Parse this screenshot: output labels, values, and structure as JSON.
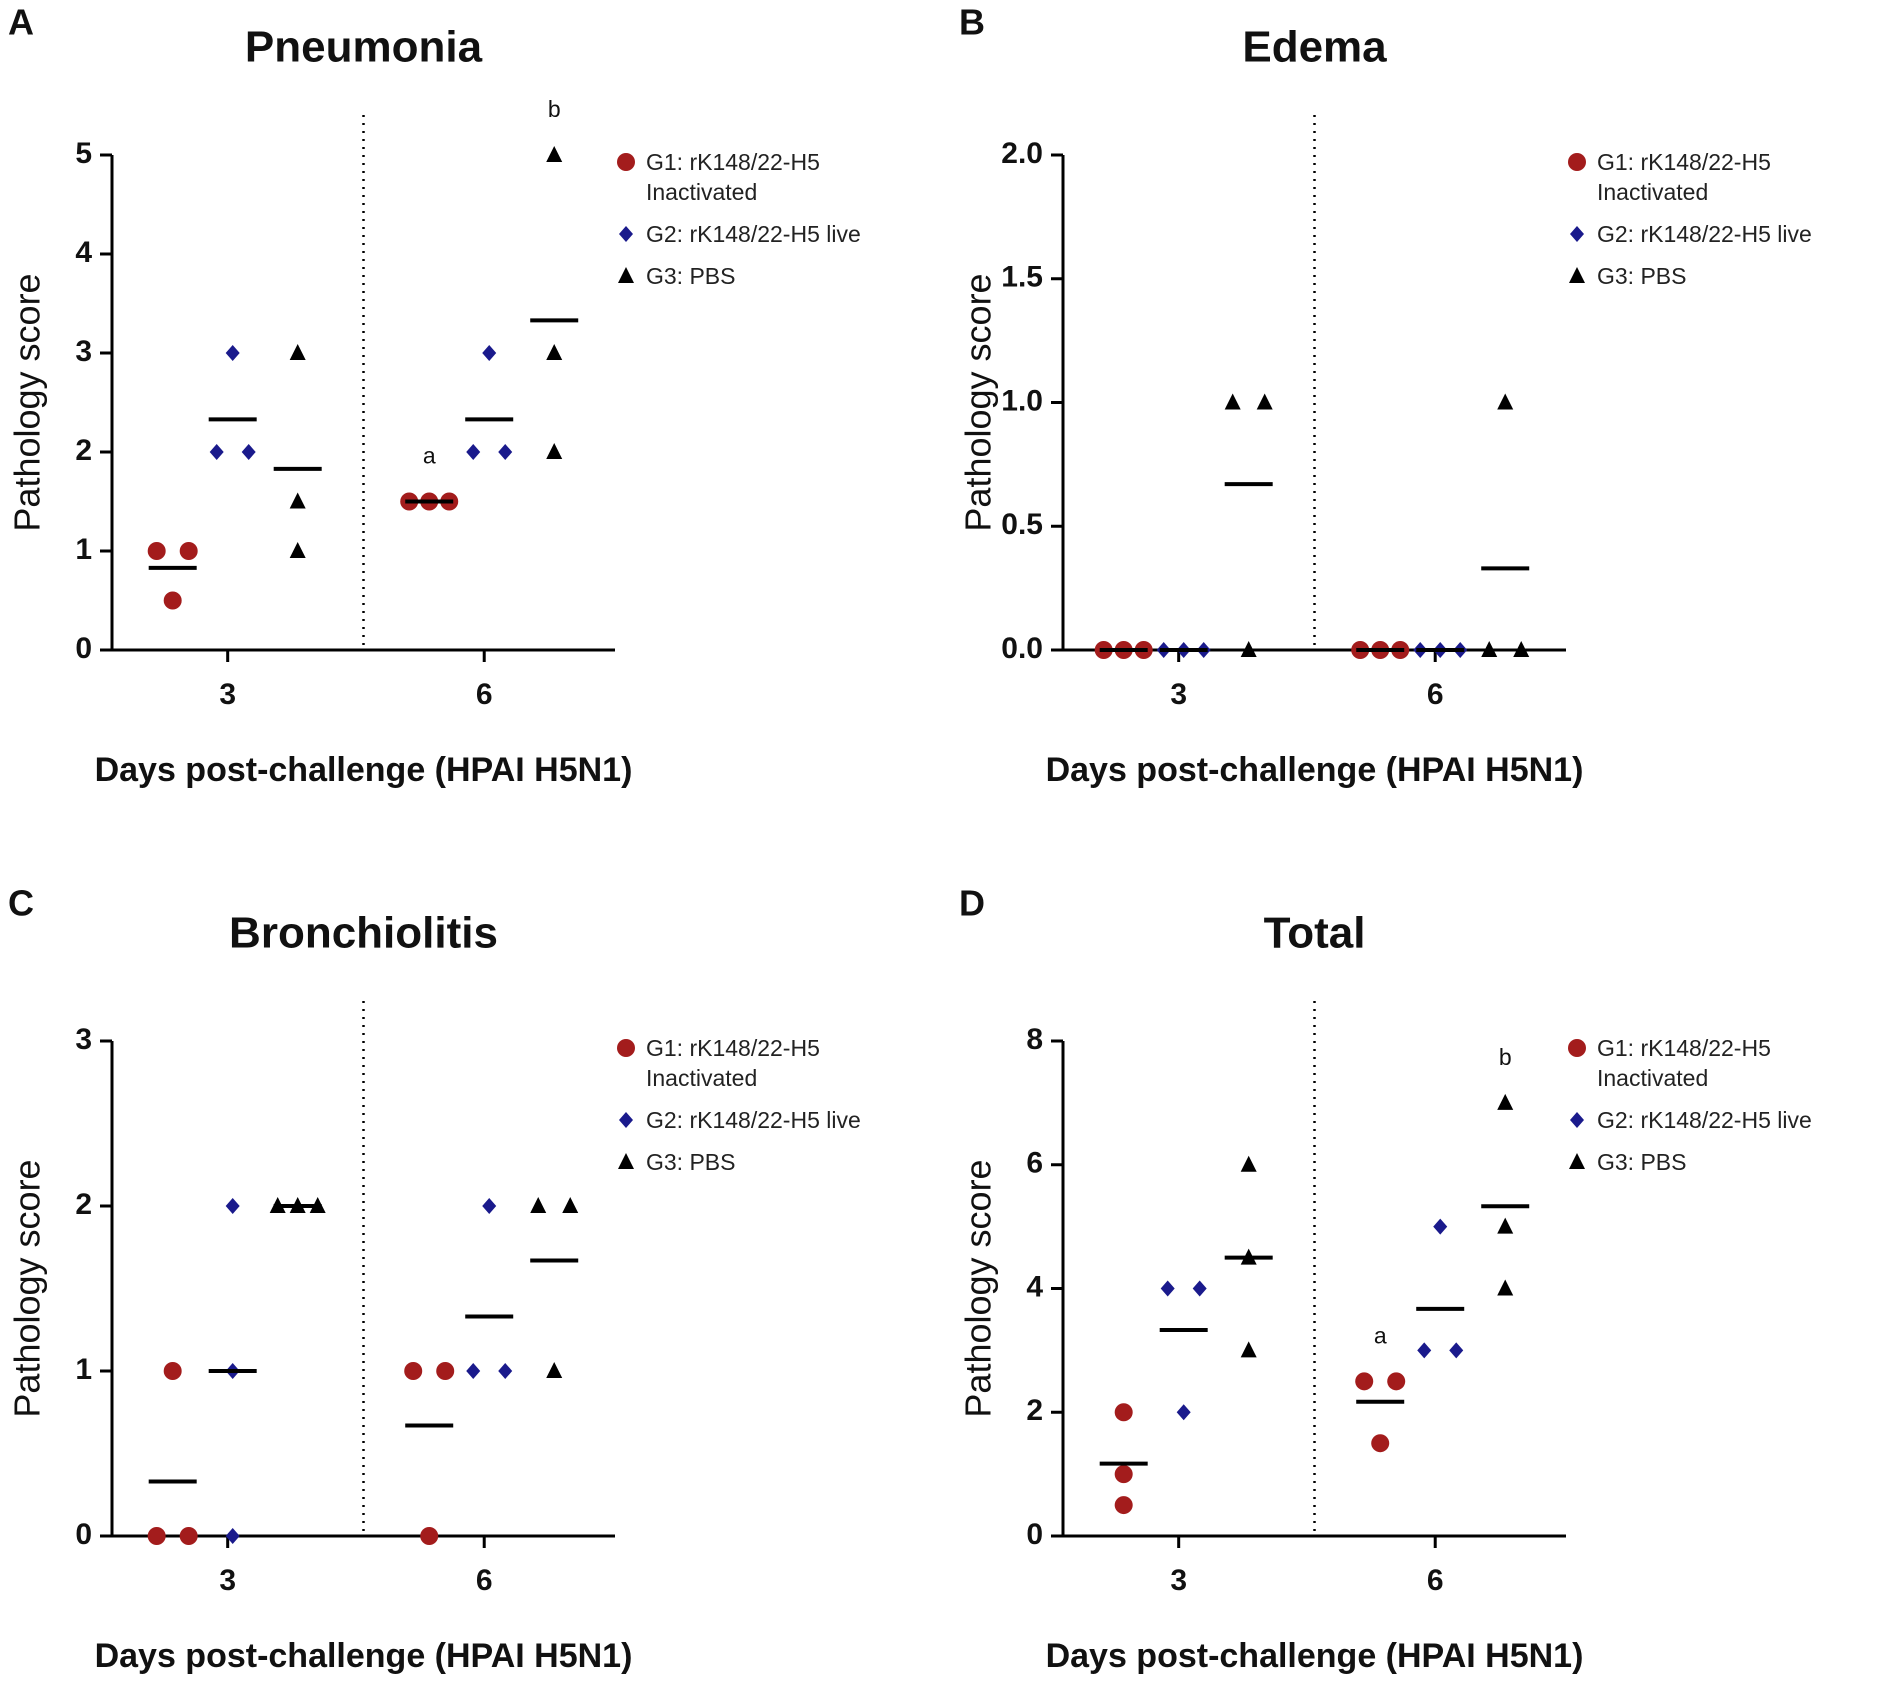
{
  "chart_data": [
    {
      "type": "scatter",
      "panel": "A",
      "title": "Pneumonia",
      "x_label": "Days post-challenge (HPAI H5N1)",
      "y_label": "Pathology score",
      "categories": [
        "3",
        "6"
      ],
      "ylim": [
        0,
        5
      ],
      "yticks": [
        0,
        1,
        2,
        3,
        4,
        5
      ],
      "series": [
        {
          "name": "G1: rK148/22-H5 Inactivated",
          "color": "#a31c1c",
          "marker": "circle",
          "values": [
            [
              1,
              1,
              0.5
            ],
            [
              1.5,
              1.5,
              1.5
            ]
          ],
          "means": [
            0.83,
            1.5
          ],
          "labels": [
            null,
            "a"
          ]
        },
        {
          "name": "G2: rK148/22-H5 live",
          "color": "#1a1a8c",
          "marker": "diamond",
          "values": [
            [
              3,
              2,
              2
            ],
            [
              3,
              2,
              2
            ]
          ],
          "means": [
            2.33,
            2.33
          ],
          "labels": [
            null,
            null
          ]
        },
        {
          "name": "G3: PBS",
          "color": "#000000",
          "marker": "triangle",
          "values": [
            [
              3,
              1.5,
              1
            ],
            [
              5,
              3,
              2
            ]
          ],
          "means": [
            1.83,
            3.33
          ],
          "labels": [
            null,
            "b"
          ]
        }
      ]
    },
    {
      "type": "scatter",
      "panel": "B",
      "title": "Edema",
      "x_label": "Days post-challenge (HPAI H5N1)",
      "y_label": "Pathology score",
      "categories": [
        "3",
        "6"
      ],
      "ylim": [
        0,
        2
      ],
      "yticks": [
        {
          "value": 0,
          "label": "0.0"
        },
        {
          "value": 0.5,
          "label": "0.5"
        },
        {
          "value": 1,
          "label": "1.0"
        },
        {
          "value": 1.5,
          "label": "1.5"
        },
        {
          "value": 2,
          "label": "2.0"
        }
      ],
      "series": [
        {
          "name": "G1: rK148/22-H5 Inactivated",
          "color": "#a31c1c",
          "marker": "circle",
          "values": [
            [
              0,
              0,
              0
            ],
            [
              0,
              0,
              0
            ]
          ],
          "means": [
            0,
            0
          ],
          "labels": [
            null,
            null
          ]
        },
        {
          "name": "G2: rK148/22-H5 live",
          "color": "#1a1a8c",
          "marker": "diamond",
          "values": [
            [
              0,
              0,
              0
            ],
            [
              0,
              0,
              0
            ]
          ],
          "means": [
            0,
            0
          ],
          "labels": [
            null,
            null
          ]
        },
        {
          "name": "G3: PBS",
          "color": "#000000",
          "marker": "triangle",
          "values": [
            [
              1,
              1,
              0
            ],
            [
              1,
              0,
              0
            ]
          ],
          "means": [
            0.67,
            0.33
          ],
          "labels": [
            null,
            null
          ]
        }
      ]
    },
    {
      "type": "scatter",
      "panel": "C",
      "title": "Bronchiolitis",
      "x_label": "Days post-challenge (HPAI H5N1)",
      "y_label": "Pathology score",
      "categories": [
        "3",
        "6"
      ],
      "ylim": [
        0,
        3
      ],
      "yticks": [
        0,
        1,
        2,
        3
      ],
      "series": [
        {
          "name": "G1: rK148/22-H5 Inactivated",
          "color": "#a31c1c",
          "marker": "circle",
          "values": [
            [
              1,
              0,
              0
            ],
            [
              1,
              1,
              0
            ]
          ],
          "means": [
            0.33,
            0.67
          ],
          "labels": [
            null,
            null
          ]
        },
        {
          "name": "G2: rK148/22-H5 live",
          "color": "#1a1a8c",
          "marker": "diamond",
          "values": [
            [
              2,
              1,
              0
            ],
            [
              2,
              1,
              1
            ]
          ],
          "means": [
            1,
            1.33
          ],
          "labels": [
            null,
            null
          ]
        },
        {
          "name": "G3: PBS",
          "color": "#000000",
          "marker": "triangle",
          "values": [
            [
              2,
              2,
              2
            ],
            [
              2,
              2,
              1
            ]
          ],
          "means": [
            2,
            1.67
          ],
          "labels": [
            null,
            null
          ]
        }
      ]
    },
    {
      "type": "scatter",
      "panel": "D",
      "title": "Total",
      "x_label": "Days post-challenge (HPAI H5N1)",
      "y_label": "Pathology score",
      "categories": [
        "3",
        "6"
      ],
      "ylim": [
        0,
        8
      ],
      "yticks": [
        0,
        2,
        4,
        6,
        8
      ],
      "series": [
        {
          "name": "G1: rK148/22-H5 Inactivated",
          "color": "#a31c1c",
          "marker": "circle",
          "values": [
            [
              2,
              1,
              0.5
            ],
            [
              2.5,
              2.5,
              1.5
            ]
          ],
          "means": [
            1.17,
            2.17
          ],
          "labels": [
            null,
            "a"
          ]
        },
        {
          "name": "G2: rK148/22-H5 live",
          "color": "#1a1a8c",
          "marker": "diamond",
          "values": [
            [
              4,
              4,
              2
            ],
            [
              5,
              3,
              3
            ]
          ],
          "means": [
            3.33,
            3.67
          ],
          "labels": [
            null,
            null
          ]
        },
        {
          "name": "G3: PBS",
          "color": "#000000",
          "marker": "triangle",
          "values": [
            [
              6,
              4.5,
              3
            ],
            [
              7,
              5,
              4
            ]
          ],
          "means": [
            4.5,
            5.33
          ],
          "labels": [
            null,
            "b"
          ]
        }
      ]
    }
  ]
}
